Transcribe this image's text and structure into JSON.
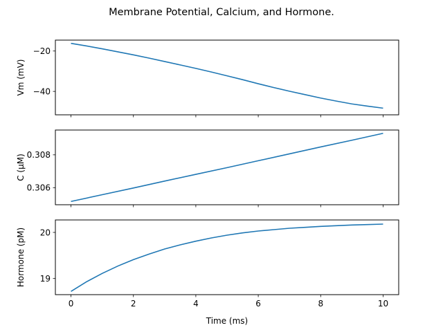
{
  "chart_data": {
    "type": "line",
    "title": "Membrane Potential, Calcium, and Hormone.",
    "xlabel": "Time (ms)",
    "xlim": [
      -0.5,
      10.5
    ],
    "xticks": [
      0,
      2,
      4,
      6,
      8,
      10
    ],
    "color": "#1f77b4",
    "subplots": [
      {
        "ylabel": "Vm (mV)",
        "ylim": [
          -51.6,
          -14.6
        ],
        "yticks": [
          -20,
          -40
        ],
        "x": [
          0,
          0.5,
          1,
          1.5,
          2,
          2.5,
          3,
          3.5,
          4,
          4.5,
          5,
          5.5,
          6,
          6.5,
          7,
          7.5,
          8,
          8.5,
          9,
          9.5,
          10
        ],
        "y": [
          -16.2,
          -17.5,
          -18.9,
          -20.4,
          -21.9,
          -23.5,
          -25.2,
          -26.9,
          -28.6,
          -30.4,
          -32.3,
          -34.2,
          -36.2,
          -38.1,
          -39.9,
          -41.6,
          -43.3,
          -44.8,
          -46.2,
          -47.3,
          -48.3
        ]
      },
      {
        "ylabel": "C (μM)",
        "ylim": [
          0.30496,
          0.30951
        ],
        "yticks": [
          0.306,
          0.308
        ],
        "x": [
          0,
          1,
          2,
          3,
          4,
          5,
          6,
          7,
          8,
          9,
          10
        ],
        "y": [
          0.30516,
          0.30557,
          0.30598,
          0.3064,
          0.30681,
          0.30722,
          0.30764,
          0.30806,
          0.30848,
          0.30889,
          0.30931
        ]
      },
      {
        "ylabel": "Hormone (pM)",
        "ylim": [
          18.65,
          20.27
        ],
        "yticks": [
          19,
          20
        ],
        "x": [
          0,
          0.5,
          1,
          1.5,
          2,
          2.5,
          3,
          3.5,
          4,
          4.5,
          5,
          5.5,
          6,
          6.5,
          7,
          7.5,
          8,
          8.5,
          9,
          9.5,
          10
        ],
        "y": [
          18.72,
          18.93,
          19.11,
          19.27,
          19.41,
          19.53,
          19.64,
          19.73,
          19.81,
          19.88,
          19.94,
          19.99,
          20.03,
          20.06,
          20.09,
          20.11,
          20.13,
          20.145,
          20.16,
          20.17,
          20.18
        ]
      }
    ]
  }
}
